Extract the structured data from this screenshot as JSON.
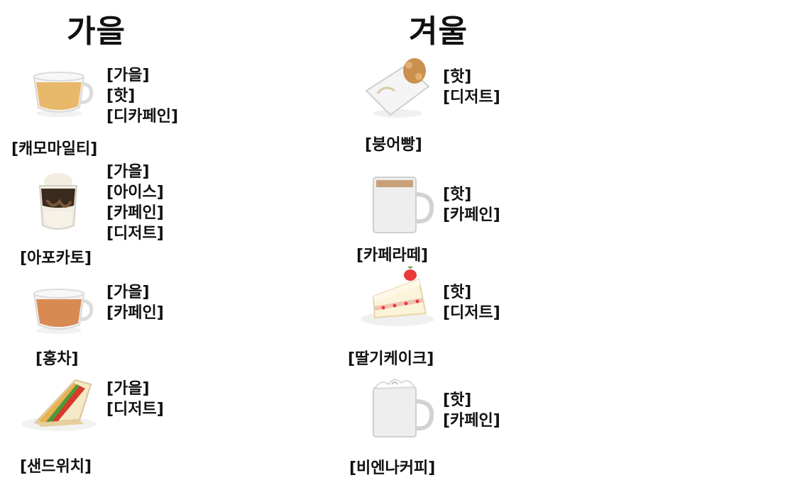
{
  "autumn": {
    "title": "가을",
    "items": [
      {
        "name": "[캐모마일티]",
        "tags": [
          "[가을]",
          "[핫]",
          "[디카페인]"
        ],
        "icon": "chamomile-tea-cup-icon",
        "color": "#e8b96a"
      },
      {
        "name": "[아포카토]",
        "tags": [
          "[가을]",
          "[아이스]",
          "[카페인]",
          "[디저트]"
        ],
        "icon": "affogato-glass-icon",
        "color": "#3b2a1e"
      },
      {
        "name": "[홍차]",
        "tags": [
          "[가을]",
          "[카페인]"
        ],
        "icon": "black-tea-cup-icon",
        "color": "#d98a52"
      },
      {
        "name": "[샌드위치]",
        "tags": [
          "[가을]",
          "[디저트]"
        ],
        "icon": "sandwich-icon",
        "color": "#e8b050"
      }
    ]
  },
  "winter": {
    "title": "겨울",
    "items": [
      {
        "name": "[붕어빵]",
        "tags": [
          "[핫]",
          "[디저트]"
        ],
        "icon": "fish-bread-bag-icon",
        "color": "#c99050"
      },
      {
        "name": "[카페라떼]",
        "tags": [
          "[핫]",
          "[카페인]"
        ],
        "icon": "cafe-latte-mug-icon",
        "color": "#eeeeee"
      },
      {
        "name": "[딸기케이크]",
        "tags": [
          "[핫]",
          "[디저트]"
        ],
        "icon": "strawberry-cake-icon",
        "color": "#e83a3a"
      },
      {
        "name": "[비엔나커피]",
        "tags": [
          "[핫]",
          "[카페인]"
        ],
        "icon": "vienna-coffee-mug-icon",
        "color": "#eeeeee"
      }
    ]
  }
}
